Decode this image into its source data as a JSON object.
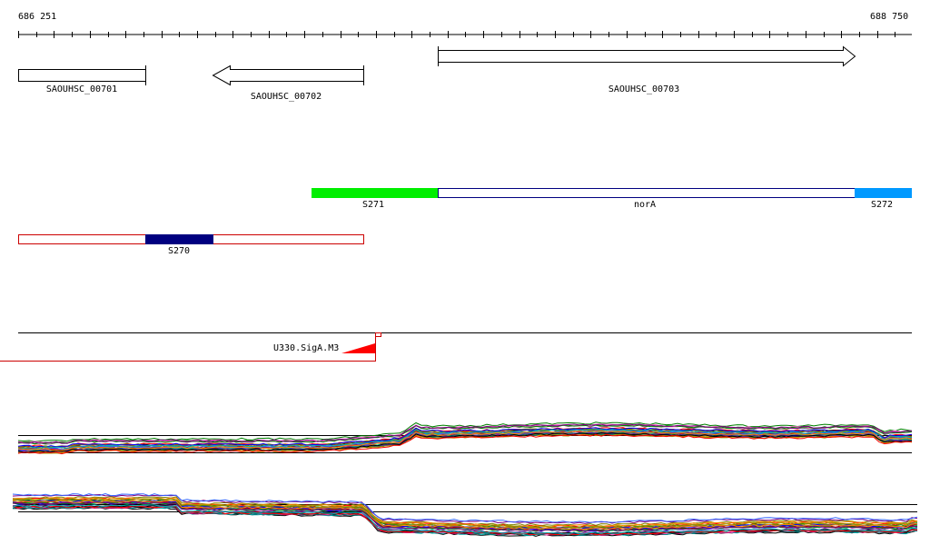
{
  "ruler": {
    "start": "686 251",
    "end": "688 750"
  },
  "genes": [
    {
      "name": "SAOUHSC_00701",
      "strand": "none"
    },
    {
      "name": "SAOUHSC_00702",
      "strand": "reverse"
    },
    {
      "name": "SAOUHSC_00703",
      "strand": "forward"
    }
  ],
  "regions_track": [
    {
      "name": "S271",
      "color": "#00ee00"
    },
    {
      "name": "norA",
      "color": "#ffffff"
    },
    {
      "name": "S272",
      "color": "#0099ff"
    }
  ],
  "regions_track2": [
    {
      "name": "S270",
      "color": "#000080",
      "outline": "#cc0000"
    }
  ],
  "promoter": {
    "name": "U330.SigA.M3",
    "color": "#ff0000"
  },
  "expression_tracks": {
    "series_colors": [
      "#000000",
      "#808000",
      "#ff0000",
      "#0000ff",
      "#008000",
      "#800080",
      "#00aaaa",
      "#ff8800",
      "#996633",
      "#cc0066",
      "#666666",
      "#00cc66",
      "#aa0000",
      "#3366ff",
      "#999900",
      "#ff66cc",
      "#006666",
      "#663399"
    ]
  }
}
